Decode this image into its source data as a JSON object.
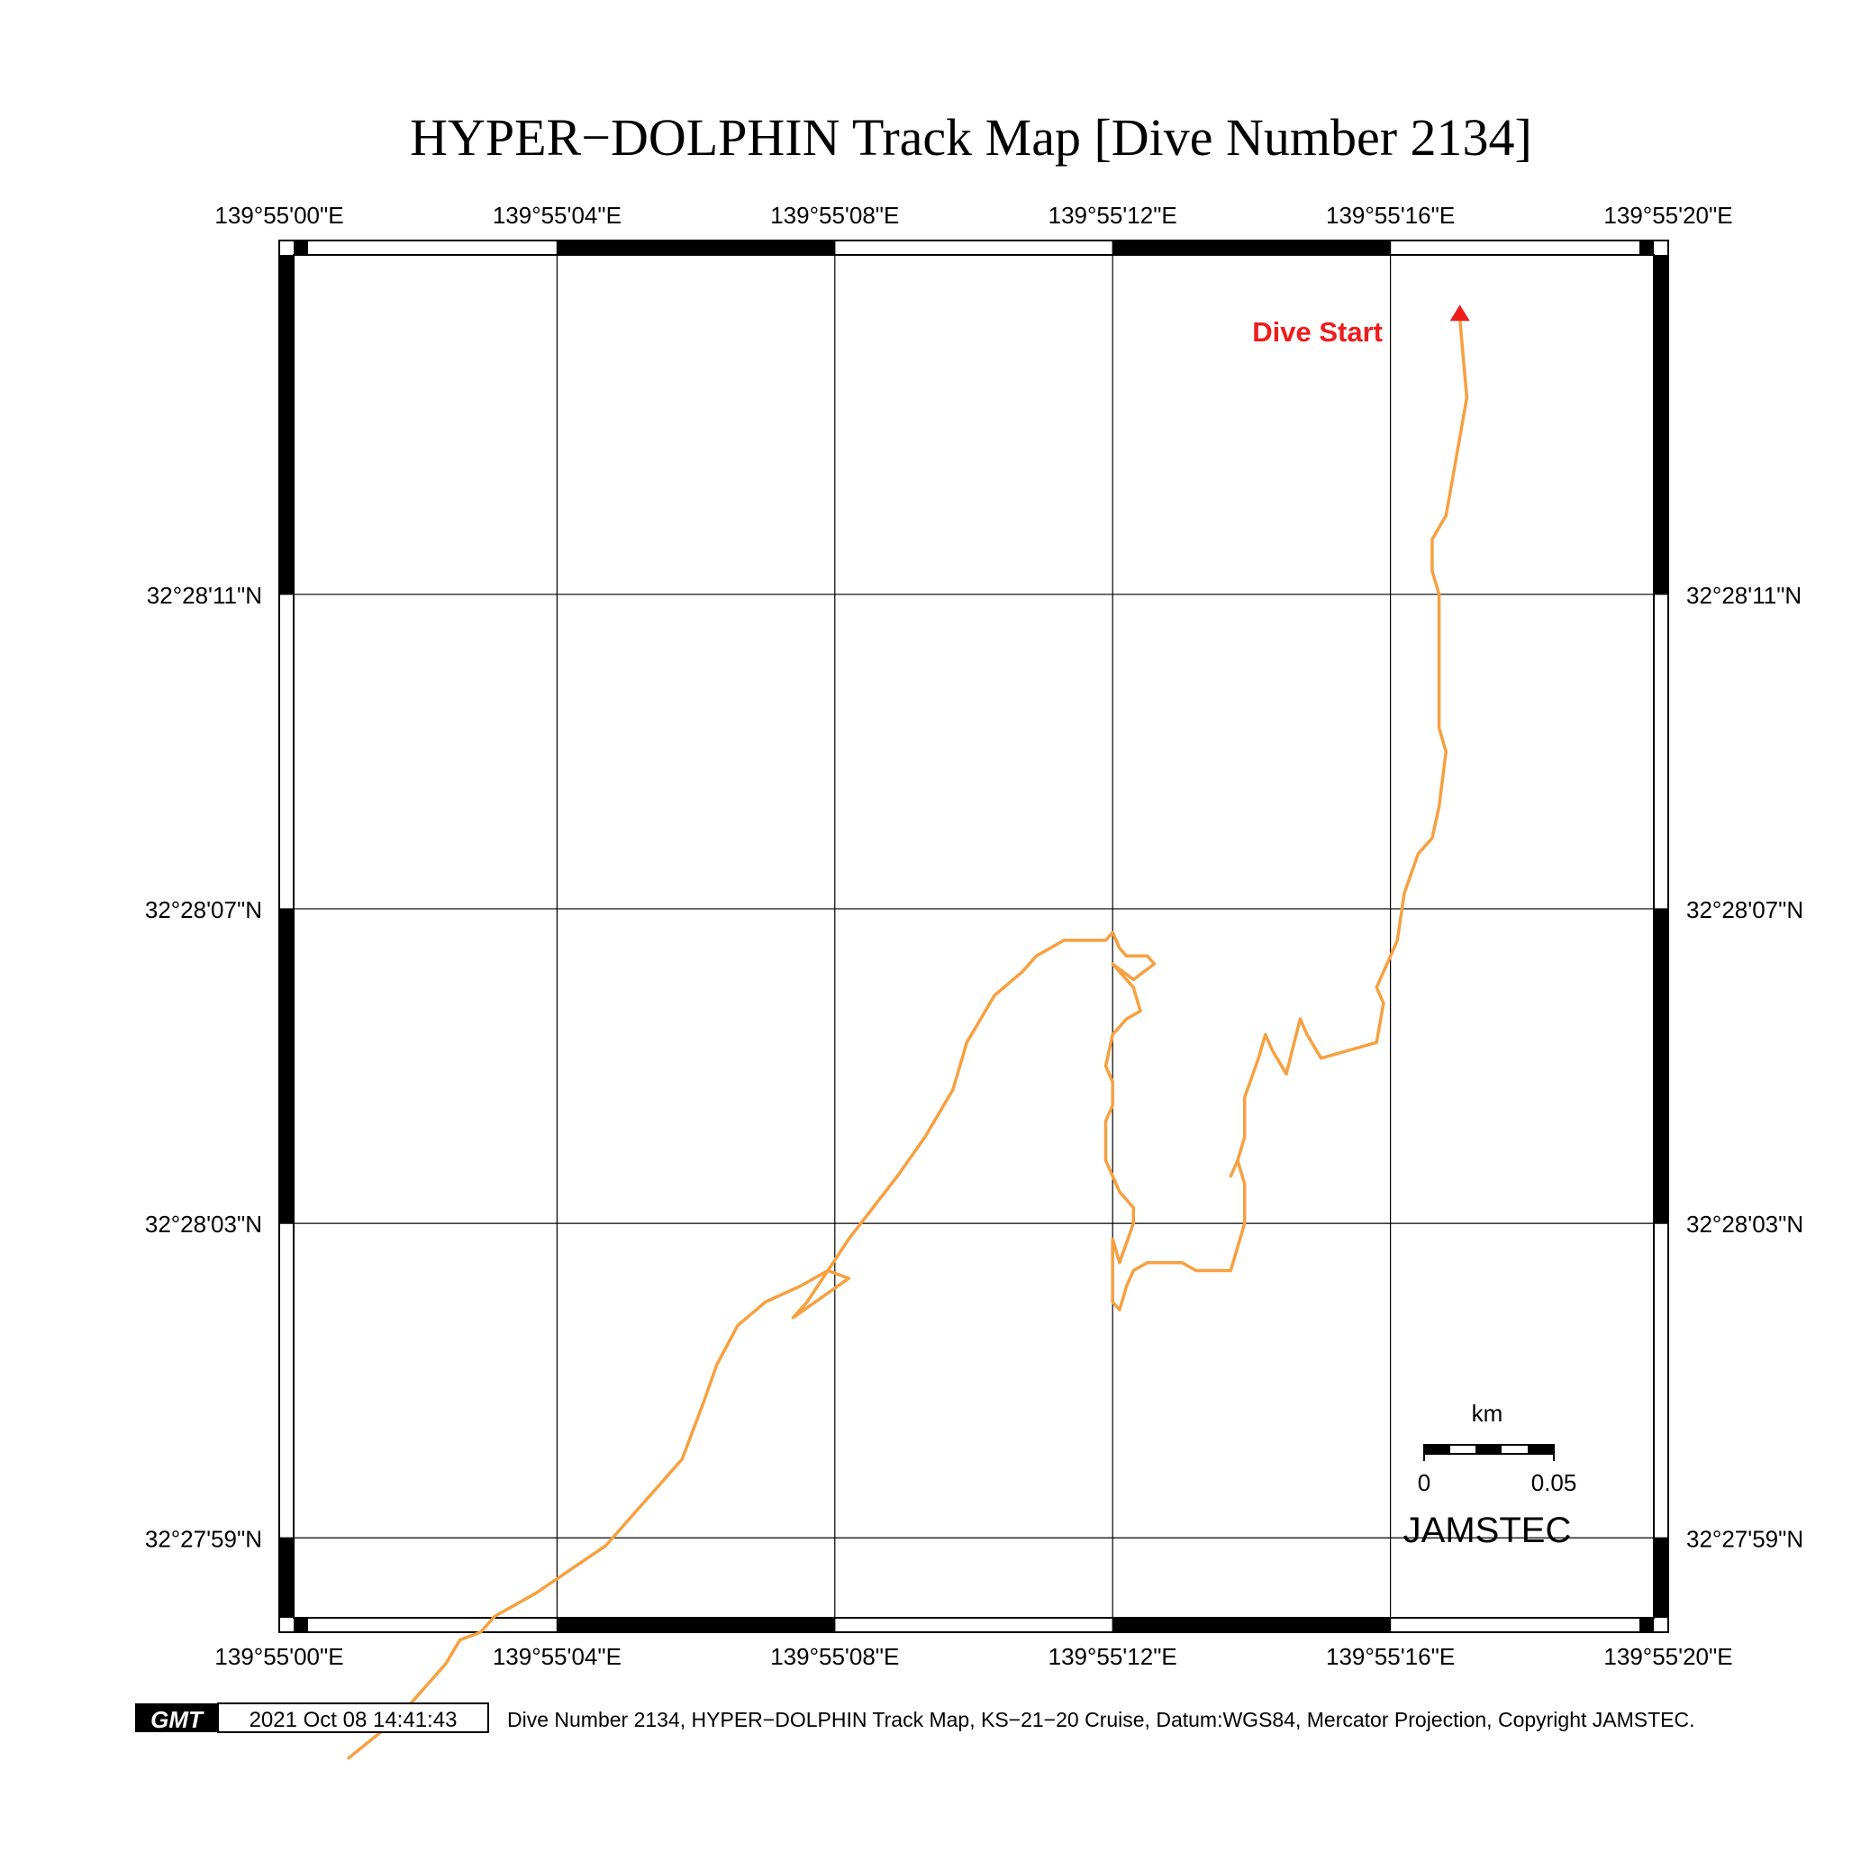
{
  "title": "HYPER−DOLPHIN Track Map [Dive Number 2134]",
  "axes": {
    "lon_labels": [
      "139°55'00\"E",
      "139°55'04\"E",
      "139°55'08\"E",
      "139°55'12\"E",
      "139°55'16\"E",
      "139°55'20\"E"
    ],
    "lat_labels": [
      "32°28'11\"N",
      "32°28'07\"N",
      "32°28'03\"N",
      "32°27'59\"N"
    ],
    "lon_range_sec": [
      0,
      20
    ],
    "lat_range_sec": [
      -8.2,
      9.5
    ],
    "lat_ticks_sec": [
      5,
      1,
      -3,
      -7
    ],
    "lon_ticks_sec": [
      0,
      4,
      8,
      12,
      16,
      20
    ]
  },
  "chart_data": {
    "type": "map-track",
    "title": "HYPER−DOLPHIN Track Map [Dive Number 2134]",
    "x_unit": "seconds of longitude past 139°55'E",
    "y_unit": "seconds of latitude relative to 32°28'06\"N",
    "grid": true,
    "track_color": "#f7a040",
    "start_marker_color": "#ee1c1c",
    "start_label": "Dive Start",
    "track": [
      [
        17.0,
        8.5
      ],
      [
        17.1,
        7.5
      ],
      [
        16.8,
        6.0
      ],
      [
        16.6,
        5.7
      ],
      [
        16.6,
        5.3
      ],
      [
        16.7,
        5.0
      ],
      [
        16.7,
        3.3
      ],
      [
        16.8,
        3.0
      ],
      [
        16.7,
        2.3
      ],
      [
        16.6,
        1.9
      ],
      [
        16.4,
        1.7
      ],
      [
        16.2,
        1.2
      ],
      [
        16.1,
        0.6
      ],
      [
        15.9,
        0.2
      ],
      [
        15.8,
        0.0
      ],
      [
        15.9,
        -0.2
      ],
      [
        15.8,
        -0.7
      ],
      [
        15.4,
        -0.8
      ],
      [
        15.0,
        -0.9
      ],
      [
        14.8,
        -0.6
      ],
      [
        14.7,
        -0.4
      ],
      [
        14.5,
        -1.1
      ],
      [
        14.3,
        -0.8
      ],
      [
        14.2,
        -0.6
      ],
      [
        14.1,
        -0.9
      ],
      [
        13.9,
        -1.4
      ],
      [
        13.9,
        -1.9
      ],
      [
        13.8,
        -2.2
      ],
      [
        13.7,
        -2.4
      ],
      [
        13.8,
        -2.2
      ],
      [
        13.9,
        -2.5
      ],
      [
        13.9,
        -3.0
      ],
      [
        13.7,
        -3.6
      ],
      [
        13.2,
        -3.6
      ],
      [
        13.0,
        -3.5
      ],
      [
        12.5,
        -3.5
      ],
      [
        12.3,
        -3.6
      ],
      [
        12.2,
        -3.8
      ],
      [
        12.1,
        -4.1
      ],
      [
        12.0,
        -4.0
      ],
      [
        12.0,
        -3.2
      ],
      [
        12.1,
        -3.5
      ],
      [
        12.3,
        -3.0
      ],
      [
        12.3,
        -2.8
      ],
      [
        12.1,
        -2.6
      ],
      [
        12.0,
        -2.4
      ],
      [
        11.9,
        -2.2
      ],
      [
        11.9,
        -2.0
      ],
      [
        11.9,
        -1.7
      ],
      [
        12.0,
        -1.5
      ],
      [
        12.0,
        -1.2
      ],
      [
        11.9,
        -1.0
      ],
      [
        12.0,
        -0.6
      ],
      [
        12.2,
        -0.4
      ],
      [
        12.4,
        -0.3
      ],
      [
        12.3,
        0.0
      ],
      [
        12.1,
        0.2
      ],
      [
        12.0,
        0.3
      ],
      [
        12.3,
        0.1
      ],
      [
        12.6,
        0.3
      ],
      [
        12.5,
        0.4
      ],
      [
        12.4,
        0.4
      ],
      [
        12.2,
        0.4
      ],
      [
        12.1,
        0.5
      ],
      [
        12.0,
        0.7
      ],
      [
        11.9,
        0.6
      ],
      [
        11.7,
        0.6
      ],
      [
        11.5,
        0.6
      ],
      [
        11.3,
        0.6
      ],
      [
        11.1,
        0.5
      ],
      [
        10.9,
        0.4
      ],
      [
        10.7,
        0.2
      ],
      [
        10.3,
        -0.1
      ],
      [
        9.9,
        -0.7
      ],
      [
        9.7,
        -1.3
      ],
      [
        9.3,
        -1.9
      ],
      [
        8.9,
        -2.4
      ],
      [
        8.2,
        -3.2
      ],
      [
        7.6,
        -4.0
      ],
      [
        7.4,
        -4.2
      ],
      [
        8.2,
        -3.7
      ],
      [
        7.9,
        -3.6
      ],
      [
        7.5,
        -3.8
      ],
      [
        7.0,
        -4.0
      ],
      [
        6.6,
        -4.3
      ],
      [
        6.3,
        -4.8
      ],
      [
        6.1,
        -5.3
      ],
      [
        5.8,
        -6.0
      ],
      [
        4.7,
        -7.1
      ],
      [
        3.7,
        -7.7
      ],
      [
        3.1,
        -8.0
      ],
      [
        2.9,
        -8.2
      ],
      [
        2.6,
        -8.3
      ],
      [
        2.4,
        -8.6
      ],
      [
        2.0,
        -9.0
      ],
      [
        1.7,
        -9.3
      ],
      [
        1.0,
        -9.8
      ]
    ],
    "scalebar": {
      "unit_label": "km",
      "ticks": [
        "0",
        "0.05"
      ],
      "value_km": 0.05
    }
  },
  "credit_label": "JAMSTEC",
  "footer": {
    "logo_text": "GMT",
    "timestamp": "2021 Oct 08 14:41:43",
    "caption": "Dive Number 2134, HYPER−DOLPHIN Track Map, KS−21−20 Cruise, Datum:WGS84, Mercator Projection, Copyright JAMSTEC."
  }
}
